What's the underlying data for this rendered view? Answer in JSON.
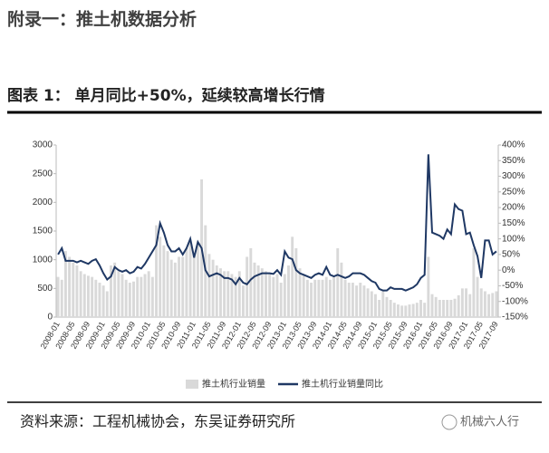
{
  "heading": "附录一：推土机数据分析",
  "figure_title": "图表 1：  单月同比+50%，延续较高增长行情",
  "source": "资料来源：工程机械协会，东吴证券研究所",
  "watermark": "机械六人行",
  "chart_data": {
    "type": "combo",
    "categories": [
      "2008-01",
      null,
      null,
      null,
      "2008-05",
      null,
      null,
      null,
      "2008-09",
      null,
      null,
      null,
      "2009-01",
      null,
      null,
      null,
      "2009-05",
      null,
      null,
      null,
      "2009-09",
      null,
      null,
      null,
      "2010-01",
      null,
      null,
      null,
      "2010-05",
      null,
      null,
      null,
      "2010-09",
      null,
      null,
      null,
      "2011-01",
      null,
      null,
      null,
      "2011-05",
      null,
      null,
      null,
      "2011-09",
      null,
      null,
      null,
      "2012-01",
      null,
      null,
      null,
      "2012-05",
      null,
      null,
      null,
      "2012-09",
      null,
      null,
      null,
      "2013-01",
      null,
      null,
      null,
      "2013-05",
      null,
      null,
      null,
      "2013-09",
      null,
      null,
      null,
      "2014-01",
      null,
      null,
      null,
      "2014-05",
      null,
      null,
      null,
      "2014-09",
      null,
      null,
      null,
      "2015-01",
      null,
      null,
      null,
      "2015-05",
      null,
      null,
      null,
      "2015-09",
      null,
      null,
      null,
      "2016-01",
      null,
      null,
      null,
      "2016-05",
      null,
      null,
      null,
      "2016-09",
      null,
      null,
      null,
      "2017-01",
      null,
      null,
      null,
      "2017-05",
      null,
      null,
      null,
      "2017-09"
    ],
    "series": [
      {
        "name": "推土机行业销量",
        "type": "bar",
        "color": "#d9d9d9",
        "axis": "y",
        "values": [
          700,
          650,
          1150,
          1050,
          950,
          900,
          800,
          750,
          720,
          700,
          650,
          600,
          550,
          450,
          900,
          950,
          800,
          750,
          650,
          600,
          620,
          700,
          700,
          750,
          800,
          700,
          1600,
          1400,
          1250,
          1150,
          1000,
          950,
          1050,
          1050,
          1200,
          1300,
          1100,
          1300,
          2400,
          1600,
          1100,
          1000,
          900,
          850,
          800,
          800,
          750,
          700,
          800,
          550,
          1050,
          1200,
          950,
          900,
          850,
          800,
          750,
          700,
          750,
          600,
          750,
          900,
          1400,
          1200,
          850,
          750,
          650,
          600,
          650,
          650,
          650,
          700,
          650,
          700,
          1200,
          950,
          650,
          600,
          600,
          550,
          600,
          550,
          500,
          450,
          400,
          300,
          450,
          350,
          300,
          250,
          220,
          200,
          200,
          220,
          230,
          250,
          300,
          250,
          1050,
          400,
          350,
          300,
          300,
          300,
          300,
          320,
          380,
          500,
          500,
          400,
          1200,
          700,
          500,
          450,
          400,
          420,
          450
        ]
      },
      {
        "name": "推土机行业销量同比",
        "type": "line",
        "color": "#1f3864",
        "axis": "y2",
        "values": [
          50,
          70,
          30,
          30,
          30,
          25,
          30,
          25,
          20,
          30,
          35,
          15,
          -10,
          -30,
          -20,
          10,
          0,
          -5,
          0,
          -10,
          -5,
          10,
          5,
          20,
          40,
          60,
          80,
          150,
          120,
          80,
          60,
          60,
          70,
          50,
          70,
          100,
          40,
          90,
          70,
          0,
          -20,
          -15,
          -10,
          -15,
          -25,
          -25,
          -30,
          -45,
          -25,
          -40,
          -45,
          -30,
          -20,
          -15,
          -10,
          -10,
          -10,
          -12,
          0,
          -15,
          60,
          40,
          35,
          0,
          -10,
          -15,
          -20,
          -25,
          -15,
          -10,
          -15,
          10,
          -15,
          -20,
          -15,
          -20,
          -25,
          -20,
          -10,
          -10,
          -10,
          -15,
          -25,
          -35,
          -40,
          -60,
          -65,
          -65,
          -55,
          -60,
          -60,
          -60,
          -65,
          -60,
          -55,
          -45,
          -25,
          -15,
          370,
          120,
          115,
          110,
          100,
          130,
          115,
          210,
          195,
          190,
          115,
          120,
          80,
          45,
          -25,
          95,
          95,
          50,
          60
        ]
      }
    ],
    "ylim": [
      0,
      3000
    ],
    "yticks": [
      0,
      500,
      1000,
      1500,
      2000,
      2500,
      3000
    ],
    "y2lim": [
      -150,
      400
    ],
    "y2ticks": [
      {
        "value": -150,
        "label": "-150%"
      },
      {
        "value": -100,
        "label": "-100%"
      },
      {
        "value": -50,
        "label": "-50%"
      },
      {
        "value": 0,
        "label": "0%"
      },
      {
        "value": 50,
        "label": "50%"
      },
      {
        "value": 100,
        "label": "100%"
      },
      {
        "value": 150,
        "label": "150%"
      },
      {
        "value": 200,
        "label": "200%"
      },
      {
        "value": 250,
        "label": "250%"
      },
      {
        "value": 300,
        "label": "300%"
      },
      {
        "value": 350,
        "label": "350%"
      },
      {
        "value": 400,
        "label": "400%"
      }
    ],
    "legend": "bottom"
  }
}
